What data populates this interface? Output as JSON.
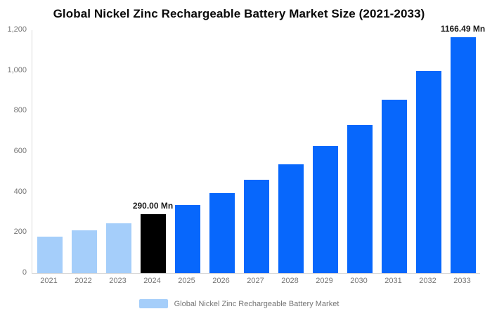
{
  "chart_data": {
    "type": "bar",
    "title": "Global Nickel Zinc Rechargeable Battery Market Size (2021-2033)",
    "unit": "Mn",
    "categories": [
      "2021",
      "2022",
      "2023",
      "2024",
      "2025",
      "2026",
      "2027",
      "2028",
      "2029",
      "2030",
      "2031",
      "2032",
      "2033"
    ],
    "series": [
      {
        "name": "Global Nickel Zinc Rechargeable Battery Market",
        "values": [
          181,
          212,
          247,
          290,
          338,
          395,
          461,
          538,
          628,
          733,
          856,
          999,
          1166.49
        ]
      }
    ],
    "value_labels": [
      "",
      "",
      "",
      "290.00 Mn",
      "",
      "",
      "",
      "",
      "",
      "",
      "",
      "",
      "1166.49 Mn"
    ],
    "bar_roles": [
      "historical",
      "historical",
      "historical",
      "highlight",
      "forecast",
      "forecast",
      "forecast",
      "forecast",
      "forecast",
      "forecast",
      "forecast",
      "forecast",
      "forecast"
    ],
    "colors": {
      "historical": "#a5cefa",
      "highlight": "#000000",
      "forecast": "#0767fc",
      "axis_line": "#d9d9d9",
      "tick_text": "#757575",
      "title_text": "#0a0a0a",
      "value_label_text": "#1b1b1b"
    },
    "ylim": [
      0,
      1200
    ],
    "yticks": [
      {
        "value": 0,
        "label": "0"
      },
      {
        "value": 200,
        "label": "200"
      },
      {
        "value": 400,
        "label": "400"
      },
      {
        "value": 600,
        "label": "600"
      },
      {
        "value": 800,
        "label": "800"
      },
      {
        "value": 1000,
        "label": "1,000"
      },
      {
        "value": 1200,
        "label": "1,200"
      }
    ],
    "grid": "off",
    "legend": {
      "position": "bottom",
      "entries": [
        {
          "label": "Global Nickel Zinc Rechargeable Battery Market",
          "color": "#a5cefa"
        }
      ]
    }
  }
}
